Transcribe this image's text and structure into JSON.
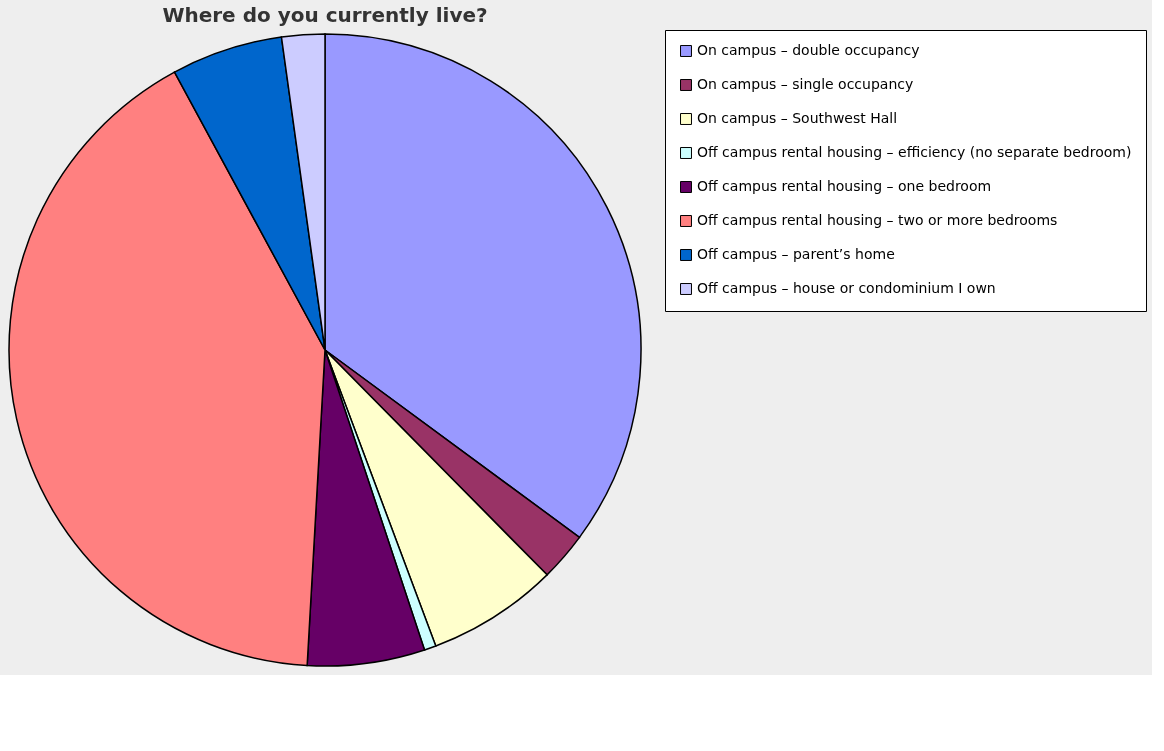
{
  "chart_data": {
    "type": "pie",
    "title": "Where do you currently live?",
    "categories": [
      "On campus – double occupancy",
      "On campus – single occupancy",
      "On campus – Southwest Hall",
      "Off campus rental housing – efficiency (no separate bedroom)",
      "Off campus rental housing – one bedroom",
      "Off campus rental housing – two or more bedrooms",
      "Off campus – parent’s home",
      "Off campus – house or condominium I own"
    ],
    "values": [
      35.1,
      2.5,
      6.7,
      0.6,
      6.0,
      41.2,
      5.7,
      2.2
    ],
    "colors": [
      "#9999ff",
      "#993366",
      "#ffffcc",
      "#ccffff",
      "#660066",
      "#ff8080",
      "#0066cc",
      "#ccccff"
    ],
    "legend": "right"
  }
}
